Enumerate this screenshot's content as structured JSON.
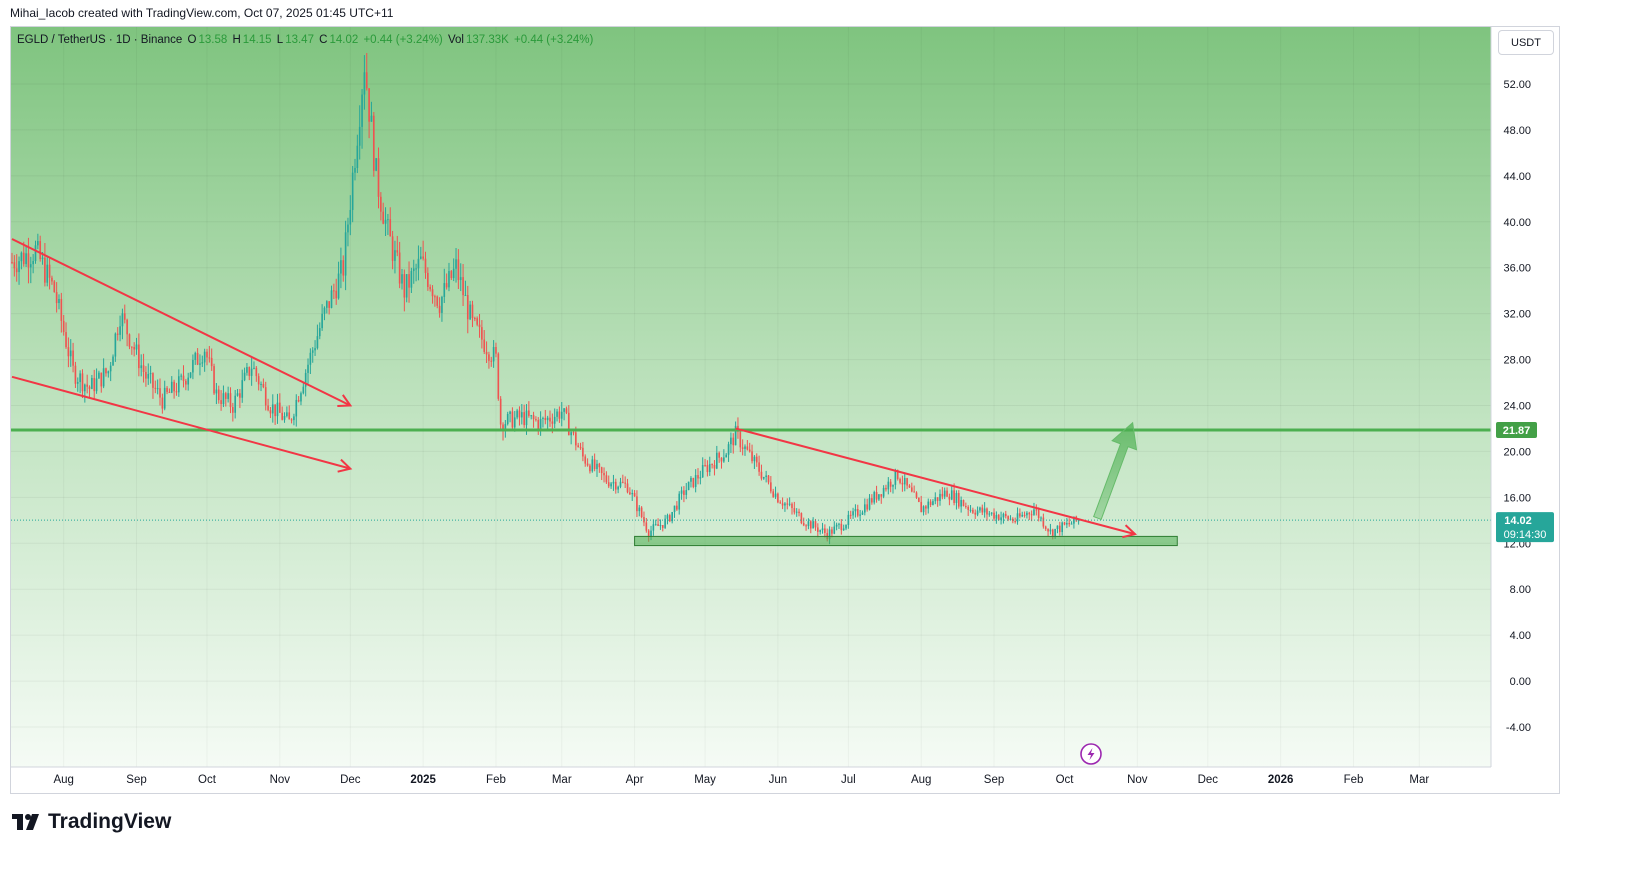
{
  "header": {
    "attribution": "Mihai_Iacob created with TradingView.com, Oct 07, 2025 01:45 UTC+11"
  },
  "legend": {
    "symbol": "EGLD / TetherUS · 1D · Binance",
    "o_label": "O",
    "o_value": "13.58",
    "h_label": "H",
    "h_value": "14.15",
    "l_label": "L",
    "l_value": "13.47",
    "c_label": "C",
    "c_value": "14.02",
    "change": "+0.44 (+3.24%)",
    "vol_label": "Vol",
    "vol_value": "137.33K",
    "vol_change": "+0.44 (+3.24%)"
  },
  "currency_button": "USDT",
  "brand": {
    "name": "TradingView"
  },
  "colors": {
    "bg_top": "#7fc47f",
    "bg_bottom": "#f3faf3",
    "up": "#26a69a",
    "down": "#ef5350",
    "support_line": "#4caf50",
    "trendline": "#f23645",
    "price_tag": "#26a69a",
    "level_tag": "#43a047"
  },
  "chart_data": {
    "type": "candlestick",
    "symbol": "EGLD / TetherUS",
    "interval": "1D",
    "exchange": "Binance",
    "yaxis": {
      "ticks": [
        "52.00",
        "48.00",
        "44.00",
        "40.00",
        "36.00",
        "32.00",
        "28.00",
        "24.00",
        "20.00",
        "16.00",
        "12.00",
        "8.00",
        "4.00",
        "0.00",
        "-4.00"
      ],
      "ylim": [
        -8.5,
        57.5
      ]
    },
    "xaxis": {
      "ticks": [
        "Aug",
        "Sep",
        "Oct",
        "Nov",
        "Dec",
        "2025",
        "Feb",
        "Mar",
        "Apr",
        "May",
        "Jun",
        "Jul",
        "Aug",
        "Sep",
        "Oct",
        "Nov",
        "Dec",
        "2026",
        "Feb",
        "Mar"
      ],
      "start": "2024-07-10",
      "end": "2026-03-26"
    },
    "close_series": [
      [
        "2024-07-10",
        36.5
      ],
      [
        "2024-07-20",
        37.5
      ],
      [
        "2024-07-28",
        34.0
      ],
      [
        "2024-08-05",
        27.0
      ],
      [
        "2024-08-12",
        25.5
      ],
      [
        "2024-08-20",
        27.0
      ],
      [
        "2024-08-25",
        32.0
      ],
      [
        "2024-09-05",
        26.5
      ],
      [
        "2024-09-12",
        24.5
      ],
      [
        "2024-09-20",
        26.0
      ],
      [
        "2024-09-30",
        29.0
      ],
      [
        "2024-10-05",
        25.0
      ],
      [
        "2024-10-12",
        24.0
      ],
      [
        "2024-10-20",
        27.5
      ],
      [
        "2024-10-28",
        24.0
      ],
      [
        "2024-11-05",
        22.5
      ],
      [
        "2024-11-12",
        27.0
      ],
      [
        "2024-11-20",
        32.0
      ],
      [
        "2024-11-28",
        36.0
      ],
      [
        "2024-12-03",
        46.0
      ],
      [
        "2024-12-07",
        54.0
      ],
      [
        "2024-12-12",
        44.0
      ],
      [
        "2024-12-17",
        39.0
      ],
      [
        "2024-12-24",
        34.0
      ],
      [
        "2024-12-31",
        36.5
      ],
      [
        "2025-01-08",
        33.0
      ],
      [
        "2025-01-15",
        36.0
      ],
      [
        "2025-01-22",
        31.0
      ],
      [
        "2025-02-01",
        28.0
      ],
      [
        "2025-02-03",
        22.5
      ],
      [
        "2025-02-12",
        23.0
      ],
      [
        "2025-02-20",
        22.5
      ],
      [
        "2025-03-01",
        23.5
      ],
      [
        "2025-03-10",
        19.5
      ],
      [
        "2025-03-20",
        17.5
      ],
      [
        "2025-03-29",
        17.0
      ],
      [
        "2025-04-07",
        13.0
      ],
      [
        "2025-04-15",
        14.0
      ],
      [
        "2025-04-22",
        16.5
      ],
      [
        "2025-05-01",
        18.5
      ],
      [
        "2025-05-10",
        20.0
      ],
      [
        "2025-05-14",
        21.5
      ],
      [
        "2025-05-22",
        19.0
      ],
      [
        "2025-06-01",
        16.0
      ],
      [
        "2025-06-12",
        14.0
      ],
      [
        "2025-06-22",
        12.8
      ],
      [
        "2025-07-01",
        14.0
      ],
      [
        "2025-07-12",
        16.0
      ],
      [
        "2025-07-22",
        18.0
      ],
      [
        "2025-08-01",
        15.0
      ],
      [
        "2025-08-12",
        16.5
      ],
      [
        "2025-08-22",
        15.0
      ],
      [
        "2025-09-01",
        14.5
      ],
      [
        "2025-09-10",
        14.0
      ],
      [
        "2025-09-18",
        15.0
      ],
      [
        "2025-09-25",
        13.0
      ],
      [
        "2025-10-01",
        13.5
      ],
      [
        "2025-10-07",
        14.02
      ]
    ],
    "last_price": "14.02",
    "countdown": "09:14:30",
    "horizontal_level": {
      "value": 21.87,
      "label": "21.87"
    },
    "support_zone": {
      "from_date": "2025-04-01",
      "to_date": "2025-11-18",
      "low": 11.8,
      "high": 12.6
    },
    "drawings": {
      "wedge_upper": {
        "from": [
          "2024-07-10",
          38.5
        ],
        "to": [
          "2024-12-01",
          24.0
        ]
      },
      "wedge_lower": {
        "from": [
          "2024-07-10",
          26.5
        ],
        "to": [
          "2024-12-01",
          18.5
        ]
      },
      "triangle_line": {
        "from": [
          "2025-05-14",
          22.0
        ],
        "to": [
          "2025-10-31",
          12.8
        ]
      },
      "projection_arrow": {
        "from": [
          "2025-10-15",
          14.2
        ],
        "to": [
          "2025-10-30",
          22.5
        ]
      }
    }
  }
}
